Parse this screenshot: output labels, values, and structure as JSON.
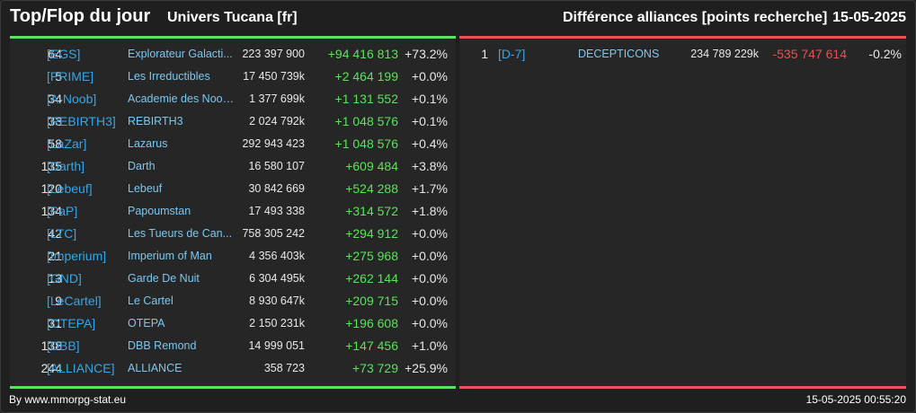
{
  "header": {
    "title": "Top/Flop du jour",
    "universe": "Univers Tucana [fr]",
    "subtitle": "Différence alliances [points recherche]",
    "date": "15-05-2025"
  },
  "colors": {
    "top_accent": "#59e459",
    "flop_accent": "#e35454",
    "tag_blue": "#35a6e8"
  },
  "top": [
    {
      "rank": "64",
      "tag": "[EGS]",
      "name": "Explorateur Galacti...",
      "points": "223 397 900",
      "diff": "+94 416 813",
      "pct": "+73.2%"
    },
    {
      "rank": "5",
      "tag": "[PRIME]",
      "name": "Les Irreductibles",
      "points": "17 450 739k",
      "diff": "+2 464 199",
      "pct": "+0.0%"
    },
    {
      "rank": "34",
      "tag": "[A-Noob]",
      "name": "Academie des Noob...",
      "points": "1 377 699k",
      "diff": "+1 131 552",
      "pct": "+0.1%"
    },
    {
      "rank": "33",
      "tag": "[REBIRTH3]",
      "name": "REBIRTH3",
      "points": "2 024 792k",
      "diff": "+1 048 576",
      "pct": "+0.1%"
    },
    {
      "rank": "58",
      "tag": "[LaZar]",
      "name": "Lazarus",
      "points": "292 943 423",
      "diff": "+1 048 576",
      "pct": "+0.4%"
    },
    {
      "rank": "135",
      "tag": "[Darth]",
      "name": "Darth",
      "points": "16 580 107",
      "diff": "+609 484",
      "pct": "+3.8%"
    },
    {
      "rank": "120",
      "tag": "[Lebeuf]",
      "name": "Lebeuf",
      "points": "30 842 669",
      "diff": "+524 288",
      "pct": "+1.7%"
    },
    {
      "rank": "134",
      "tag": "[PaP]",
      "name": "Papoumstan",
      "points": "17 493 338",
      "diff": "+314 572",
      "pct": "+1.8%"
    },
    {
      "rank": "42",
      "tag": "[LTC]",
      "name": "Les Tueurs de Can...",
      "points": "758 305 242",
      "diff": "+294 912",
      "pct": "+0.0%"
    },
    {
      "rank": "21",
      "tag": "[Imperium]",
      "name": "Imperium of Man",
      "points": "4 356 403k",
      "diff": "+275 968",
      "pct": "+0.0%"
    },
    {
      "rank": "13",
      "tag": "[GND]",
      "name": "Garde De Nuit",
      "points": "6 304 495k",
      "diff": "+262 144",
      "pct": "+0.0%"
    },
    {
      "rank": "9",
      "tag": "[LeCartel]",
      "name": "Le Cartel",
      "points": "8 930 647k",
      "diff": "+209 715",
      "pct": "+0.0%"
    },
    {
      "rank": "31",
      "tag": "[OTEPA]",
      "name": "OTEPA",
      "points": "2 150 231k",
      "diff": "+196 608",
      "pct": "+0.0%"
    },
    {
      "rank": "138",
      "tag": "[DBB]",
      "name": "DBB Remond",
      "points": "14 999 051",
      "diff": "+147 456",
      "pct": "+1.0%"
    },
    {
      "rank": "244",
      "tag": "[ALLIANCE]",
      "name": "ALLIANCE",
      "points": "358 723",
      "diff": "+73 729",
      "pct": "+25.9%"
    }
  ],
  "flop": [
    {
      "rank": "1",
      "tag": "[D-7]",
      "name": "DECEPTICONS",
      "points": "234 789 229k",
      "diff": "-535 747 614",
      "pct": "-0.2%"
    }
  ],
  "footer": {
    "source": "By www.mmorpg-stat.eu",
    "timestamp": "15-05-2025 00:55:20"
  }
}
